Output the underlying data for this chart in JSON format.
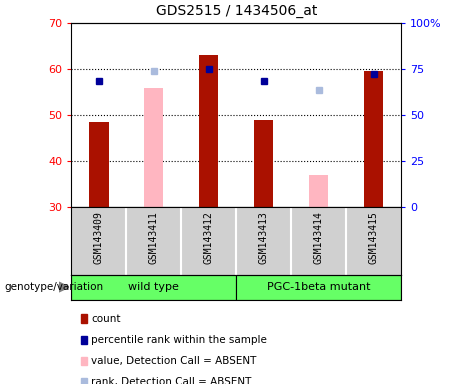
{
  "title": "GDS2515 / 1434506_at",
  "samples": [
    "GSM143409",
    "GSM143411",
    "GSM143412",
    "GSM143413",
    "GSM143414",
    "GSM143415"
  ],
  "count_values": [
    48.5,
    null,
    63.0,
    49.0,
    null,
    59.5
  ],
  "count_absent_values": [
    null,
    56.0,
    null,
    null,
    37.0,
    null
  ],
  "percentile_values": [
    57.5,
    null,
    60.0,
    57.5,
    null,
    59.0
  ],
  "percentile_absent_values": [
    null,
    59.5,
    null,
    null,
    55.5,
    null
  ],
  "left_ylim": [
    30,
    70
  ],
  "left_yticks": [
    30,
    40,
    50,
    60,
    70
  ],
  "right_ylim": [
    0,
    100
  ],
  "right_yticks": [
    0,
    25,
    50,
    75,
    100
  ],
  "right_yticklabels": [
    "0",
    "25",
    "50",
    "75",
    "100%"
  ],
  "bar_width": 0.35,
  "count_color": "#AA1100",
  "count_absent_color": "#FFB6C1",
  "percentile_color": "#000099",
  "percentile_absent_color": "#AABBDD",
  "plot_bg_color": "#FFFFFF",
  "label_area_color": "#D0D0D0",
  "group_color": "#66FF66",
  "genotype_label": "genotype/variation",
  "wild_type_label": "wild type",
  "mutant_label": "PGC-1beta mutant",
  "legend_items": [
    {
      "label": "count",
      "color": "#AA1100"
    },
    {
      "label": "percentile rank within the sample",
      "color": "#000099"
    },
    {
      "label": "value, Detection Call = ABSENT",
      "color": "#FFB6C1"
    },
    {
      "label": "rank, Detection Call = ABSENT",
      "color": "#AABBDD"
    }
  ]
}
